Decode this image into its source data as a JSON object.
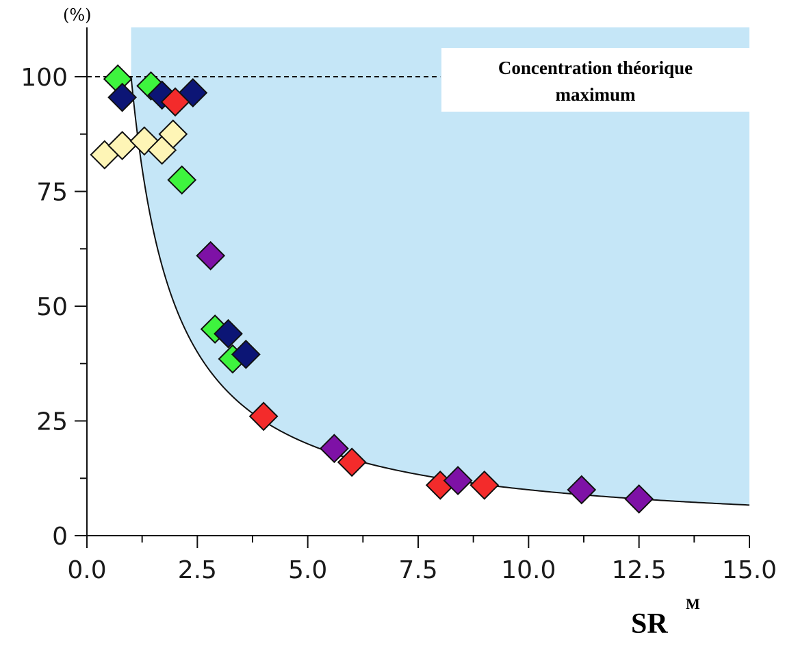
{
  "chart_data": {
    "type": "scatter",
    "title": "",
    "xlabel": "SR",
    "xlabel_superscript": "M",
    "ylabel": "(%)",
    "xlim": [
      0,
      15
    ],
    "ylim": [
      0,
      100
    ],
    "x_ticks": [
      "0.0",
      "2.5",
      "5.0",
      "7.5",
      "10.0",
      "12.5",
      "15.0"
    ],
    "y_ticks": [
      "0",
      "25",
      "50",
      "75",
      "100"
    ],
    "grid": false,
    "reference_line": {
      "y": 100,
      "style": "dashed"
    },
    "annotation": {
      "lines": [
        "Concentration théorique",
        "maximum"
      ]
    },
    "shaded_region": {
      "x_from": 1.0,
      "description": "region above curve y = 100/x",
      "color": "#c5e6f7"
    },
    "curve": {
      "equation": "y = 100 / x",
      "x_from": 1.0,
      "x_to": 15.0
    },
    "colors": {
      "pale-yellow": "#fef5b6",
      "green": "#3ef43e",
      "navy": "#0c1575",
      "red": "#f32b2b",
      "purple": "#7e11a6"
    },
    "series": [
      {
        "color": "pale-yellow",
        "points": [
          [
            0.4,
            83
          ],
          [
            0.8,
            85
          ],
          [
            1.3,
            86
          ],
          [
            1.7,
            84
          ],
          [
            1.95,
            87.5
          ]
        ]
      },
      {
        "color": "green",
        "points": [
          [
            0.7,
            99.5
          ],
          [
            1.45,
            98
          ],
          [
            2.15,
            77.5
          ],
          [
            2.9,
            45
          ],
          [
            3.3,
            38.5
          ]
        ]
      },
      {
        "color": "navy",
        "points": [
          [
            0.8,
            95.5
          ],
          [
            1.7,
            96
          ],
          [
            2.4,
            96.5
          ],
          [
            3.2,
            44
          ],
          [
            3.6,
            39.5
          ]
        ]
      },
      {
        "color": "red",
        "points": [
          [
            2.0,
            94.5
          ],
          [
            4.0,
            26
          ],
          [
            6.0,
            16
          ],
          [
            8.0,
            11
          ],
          [
            9.0,
            11
          ]
        ]
      },
      {
        "color": "purple",
        "points": [
          [
            2.8,
            61
          ],
          [
            5.6,
            19
          ],
          [
            8.4,
            12
          ],
          [
            11.2,
            10
          ],
          [
            12.5,
            8
          ]
        ]
      }
    ]
  }
}
